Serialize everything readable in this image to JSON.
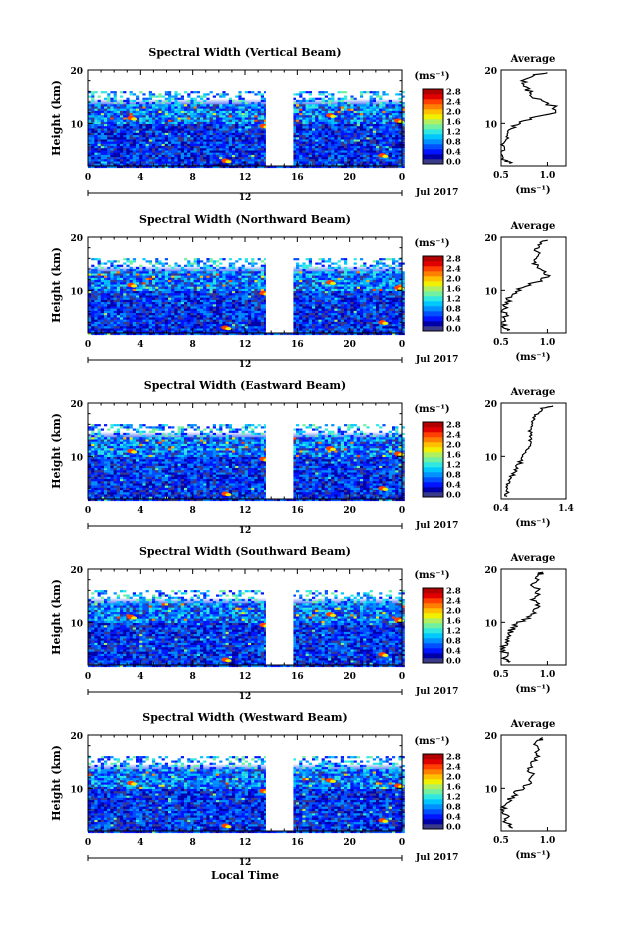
{
  "figure": {
    "xlabel": "Local Time",
    "month_label": "Jul 2017",
    "day_label": "12",
    "x_ticks": [
      "0",
      "4",
      "8",
      "12",
      "16",
      "20",
      "0"
    ],
    "colorbar_unit": "(ms⁻¹)",
    "colorbar_ticks": [
      "0.0",
      "0.4",
      "0.8",
      "1.2",
      "1.6",
      "2.0",
      "2.4",
      "2.8"
    ],
    "average_title": "Average",
    "average_xlabel": "(ms⁻¹)",
    "ylabel": "Height (km)",
    "colors": {
      "jet": [
        "#3a3a8a",
        "#0000a8",
        "#0014ff",
        "#0050ff",
        "#0090ff",
        "#00c8ff",
        "#30e8e0",
        "#70f0a0",
        "#b0f060",
        "#f0f000",
        "#ffc000",
        "#ff8000",
        "#ff4000",
        "#e00000",
        "#b00000"
      ],
      "gap_start_hour": 13.6,
      "gap_end_hour": 15.7
    }
  },
  "chart_data": [
    {
      "type": "heatmap",
      "title": "Spectral Width (Vertical Beam)",
      "xlim": [
        0,
        24
      ],
      "ylim": [
        2,
        20
      ],
      "y_ticks": [
        "20",
        "10"
      ],
      "colorbar_range": [
        0.0,
        2.8
      ],
      "average_profile": {
        "x_ticks": [
          "0.5",
          "1.0"
        ],
        "xlim": [
          0.5,
          1.2
        ],
        "ylim": [
          2,
          20
        ],
        "y_ticks": [
          "20",
          "10"
        ],
        "heights": [
          2.5,
          3,
          4,
          5,
          6,
          7,
          8,
          9,
          10,
          11,
          12,
          13,
          14,
          15,
          16,
          17,
          18,
          19,
          19.5
        ],
        "values": [
          0.6,
          0.55,
          0.5,
          0.52,
          0.5,
          0.54,
          0.58,
          0.6,
          0.7,
          0.85,
          1.05,
          1.1,
          0.95,
          0.85,
          0.8,
          0.78,
          0.75,
          0.85,
          1.0
        ]
      }
    },
    {
      "type": "heatmap",
      "title": "Spectral Width (Northward Beam)",
      "xlim": [
        0,
        24
      ],
      "ylim": [
        2,
        20
      ],
      "y_ticks": [
        "20",
        "10"
      ],
      "colorbar_range": [
        0.0,
        2.8
      ],
      "average_profile": {
        "x_ticks": [
          "0.5",
          "1.0"
        ],
        "xlim": [
          0.5,
          1.2
        ],
        "ylim": [
          2,
          20
        ],
        "y_ticks": [
          "20",
          "10"
        ],
        "heights": [
          2.5,
          3,
          4,
          5,
          6,
          7,
          8,
          9,
          10,
          11,
          12,
          13,
          14,
          15,
          16,
          17,
          18,
          19,
          19.5
        ],
        "values": [
          0.6,
          0.55,
          0.52,
          0.55,
          0.52,
          0.55,
          0.58,
          0.6,
          0.68,
          0.8,
          0.95,
          1.0,
          0.92,
          0.88,
          0.85,
          0.88,
          0.9,
          0.95,
          1.0
        ]
      }
    },
    {
      "type": "heatmap",
      "title": "Spectral Width (Eastward Beam)",
      "xlim": [
        0,
        24
      ],
      "ylim": [
        2,
        20
      ],
      "y_ticks": [
        "20",
        "10"
      ],
      "colorbar_range": [
        0.0,
        2.8
      ],
      "average_profile": {
        "x_ticks": [
          "0.4",
          "1.4"
        ],
        "xlim": [
          0.4,
          1.4
        ],
        "ylim": [
          2,
          20
        ],
        "y_ticks": [
          "20",
          "10"
        ],
        "heights": [
          2.5,
          3,
          4,
          5,
          6,
          7,
          8,
          9,
          10,
          11,
          12,
          13,
          14,
          15,
          16,
          17,
          18,
          19,
          19.5
        ],
        "values": [
          0.5,
          0.48,
          0.5,
          0.52,
          0.55,
          0.6,
          0.65,
          0.7,
          0.75,
          0.8,
          0.82,
          0.85,
          0.88,
          0.85,
          0.9,
          0.92,
          0.95,
          1.05,
          1.2
        ]
      }
    },
    {
      "type": "heatmap",
      "title": "Spectral Width (Southward Beam)",
      "xlim": [
        0,
        24
      ],
      "ylim": [
        2,
        20
      ],
      "y_ticks": [
        "20",
        "10"
      ],
      "colorbar_range": [
        0.0,
        2.8
      ],
      "average_profile": {
        "x_ticks": [
          "0.5",
          "1.0"
        ],
        "xlim": [
          0.5,
          1.2
        ],
        "ylim": [
          2,
          20
        ],
        "y_ticks": [
          "20",
          "10"
        ],
        "heights": [
          2.5,
          3,
          4,
          5,
          6,
          7,
          8,
          9,
          10,
          11,
          12,
          13,
          14,
          15,
          16,
          17,
          18,
          19,
          19.5
        ],
        "values": [
          0.6,
          0.55,
          0.55,
          0.52,
          0.55,
          0.58,
          0.6,
          0.62,
          0.7,
          0.8,
          0.88,
          0.9,
          0.85,
          0.88,
          0.9,
          0.85,
          0.88,
          0.92,
          0.95
        ]
      }
    },
    {
      "type": "heatmap",
      "title": "Spectral Width (Westward Beam)",
      "xlim": [
        0,
        24
      ],
      "ylim": [
        2,
        20
      ],
      "y_ticks": [
        "20",
        "10"
      ],
      "colorbar_range": [
        0.0,
        2.8
      ],
      "average_profile": {
        "x_ticks": [
          "0.5",
          "1.0"
        ],
        "xlim": [
          0.5,
          1.2
        ],
        "ylim": [
          2,
          20
        ],
        "y_ticks": [
          "20",
          "10"
        ],
        "heights": [
          2.5,
          3,
          4,
          5,
          6,
          7,
          8,
          9,
          10,
          11,
          12,
          13,
          14,
          15,
          16,
          17,
          18,
          19,
          19.5
        ],
        "values": [
          0.62,
          0.58,
          0.55,
          0.55,
          0.52,
          0.55,
          0.6,
          0.65,
          0.72,
          0.8,
          0.85,
          0.82,
          0.8,
          0.85,
          0.88,
          0.9,
          0.88,
          0.92,
          0.95
        ]
      }
    }
  ]
}
